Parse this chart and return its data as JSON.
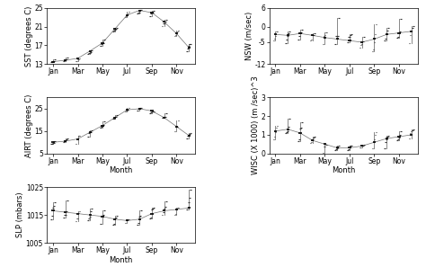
{
  "n_years": 5,
  "month_positions": [
    1,
    2,
    3,
    4,
    5,
    6,
    7,
    8,
    9,
    10,
    11,
    12
  ],
  "xtick_labels": [
    "Jan",
    "Mar",
    "May",
    "Jul",
    "Sep",
    "Nov"
  ],
  "xtick_positions": [
    1,
    3,
    5,
    7,
    9,
    11
  ],
  "sst_mean": [
    13.5,
    13.8,
    14.2,
    15.8,
    17.5,
    20.5,
    23.5,
    24.5,
    24.0,
    22.0,
    19.5,
    16.5
  ],
  "sst_spread": [
    0.8,
    1.0,
    0.9,
    1.2,
    1.4,
    1.5,
    1.2,
    1.0,
    1.3,
    1.5,
    1.8,
    2.5
  ],
  "sst_ylim": [
    13,
    25
  ],
  "sst_yticks": [
    13,
    17,
    21,
    25
  ],
  "sst_ylabel": "SST (degrees C)",
  "nsw_mean": [
    -2.5,
    -2.8,
    -2.2,
    -2.8,
    -3.5,
    -4.0,
    -4.5,
    -5.0,
    -4.0,
    -2.5,
    -2.0,
    -1.5
  ],
  "nsw_spread": [
    5.0,
    4.5,
    4.5,
    4.0,
    4.5,
    5.0,
    5.5,
    6.0,
    6.0,
    5.5,
    6.0,
    5.5
  ],
  "nsw_ylim": [
    -12,
    6
  ],
  "nsw_yticks": [
    -12,
    -5,
    0,
    6
  ],
  "nsw_ylabel": "NSW (m/sec)",
  "airt_mean": [
    10.0,
    10.5,
    11.5,
    14.5,
    17.5,
    21.0,
    24.5,
    25.0,
    24.0,
    21.0,
    17.0,
    13.0
  ],
  "airt_spread": [
    2.0,
    2.2,
    2.5,
    3.0,
    3.2,
    3.0,
    2.5,
    2.0,
    2.5,
    3.0,
    3.2,
    2.8
  ],
  "airt_ylim": [
    5,
    30
  ],
  "airt_yticks": [
    5,
    15,
    25
  ],
  "airt_ylabel": "AIRT (degrees C)",
  "wisc_mean": [
    1.2,
    1.3,
    1.1,
    0.7,
    0.5,
    0.3,
    0.3,
    0.4,
    0.6,
    0.8,
    0.9,
    1.0
  ],
  "wisc_spread": [
    1.0,
    0.9,
    0.8,
    0.5,
    0.4,
    0.2,
    0.25,
    0.4,
    0.7,
    0.8,
    0.9,
    0.9
  ],
  "wisc_ylim": [
    0,
    3
  ],
  "wisc_yticks": [
    0,
    1,
    2,
    3
  ],
  "wisc_ylabel": "WISC (X 1000) (m /sec)^3",
  "slp_mean": [
    1016.5,
    1016.0,
    1015.5,
    1015.0,
    1014.5,
    1013.5,
    1013.0,
    1013.5,
    1015.5,
    1016.5,
    1017.0,
    1017.5
  ],
  "slp_spread": [
    6.0,
    5.5,
    5.0,
    4.5,
    4.5,
    4.0,
    4.0,
    5.0,
    5.0,
    5.0,
    6.0,
    7.0
  ],
  "slp_ylim": [
    1005,
    1025
  ],
  "slp_yticks": [
    1005,
    1015,
    1025
  ],
  "slp_ylabel": "SLP (mbars)",
  "line_color": "#333333",
  "bar_color": "#888888",
  "mean_color": "#000000",
  "background_color": "#ffffff",
  "xlabel": "Month",
  "tick_fontsize": 5.5,
  "label_fontsize": 6.0
}
